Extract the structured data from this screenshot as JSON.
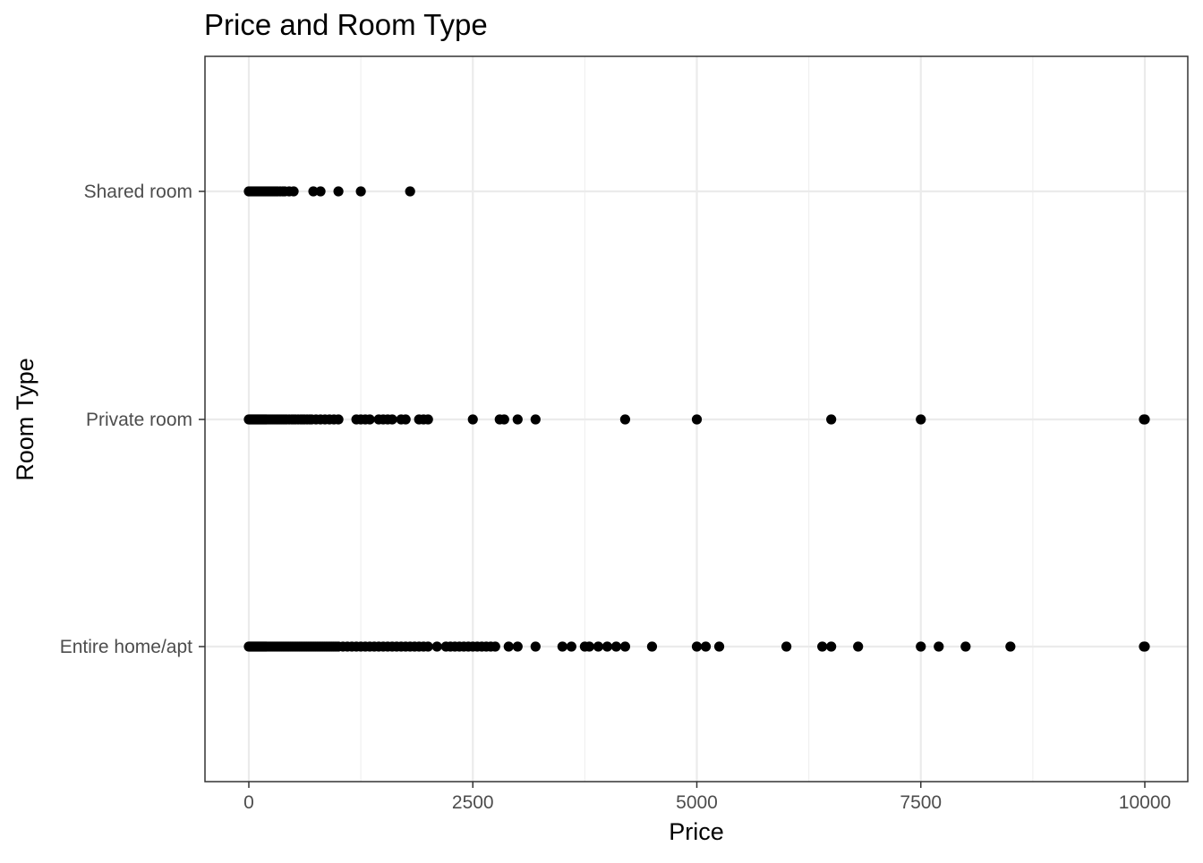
{
  "chart_data": {
    "type": "scatter",
    "title": "Price and Room Type",
    "xlabel": "Price",
    "ylabel": "Room Type",
    "xlim": [
      -500,
      10500
    ],
    "x_ticks": [
      0,
      2500,
      5000,
      7500,
      10000
    ],
    "x_tick_labels": [
      "0",
      "2500",
      "5000",
      "7500",
      "10000"
    ],
    "categories": [
      "Entire home/apt",
      "Private room",
      "Shared room"
    ],
    "grid": true,
    "theme": "bw",
    "point_color": "#000000",
    "series": [
      {
        "category": "Shared room",
        "x": [
          0,
          20,
          40,
          60,
          80,
          100,
          120,
          140,
          160,
          180,
          200,
          220,
          240,
          260,
          280,
          300,
          320,
          350,
          380,
          400,
          450,
          500,
          720,
          800,
          1000,
          1250,
          1800
        ]
      },
      {
        "category": "Private room",
        "x": [
          0,
          10,
          20,
          30,
          40,
          50,
          60,
          70,
          80,
          90,
          100,
          110,
          120,
          130,
          140,
          150,
          160,
          170,
          180,
          190,
          200,
          220,
          240,
          260,
          280,
          300,
          320,
          340,
          360,
          380,
          400,
          420,
          450,
          480,
          500,
          520,
          550,
          580,
          600,
          620,
          650,
          680,
          700,
          750,
          800,
          850,
          900,
          950,
          1000,
          1200,
          1250,
          1300,
          1350,
          1450,
          1500,
          1550,
          1600,
          1700,
          1750,
          1900,
          1950,
          2000,
          2500,
          2800,
          2850,
          3000,
          3200,
          4200,
          5000,
          6500,
          7500,
          9990,
          10000
        ]
      },
      {
        "category": "Entire home/apt",
        "x": [
          0,
          10,
          20,
          30,
          40,
          50,
          60,
          70,
          80,
          90,
          100,
          110,
          120,
          130,
          140,
          150,
          160,
          170,
          180,
          190,
          200,
          220,
          240,
          260,
          280,
          300,
          320,
          340,
          360,
          380,
          400,
          420,
          440,
          460,
          480,
          500,
          520,
          540,
          560,
          580,
          600,
          620,
          640,
          660,
          680,
          700,
          720,
          740,
          760,
          780,
          800,
          820,
          840,
          860,
          880,
          900,
          920,
          940,
          960,
          980,
          1000,
          1050,
          1100,
          1150,
          1200,
          1250,
          1300,
          1350,
          1400,
          1450,
          1500,
          1550,
          1600,
          1650,
          1700,
          1750,
          1800,
          1850,
          1900,
          1950,
          2000,
          2100,
          2200,
          2250,
          2300,
          2350,
          2400,
          2450,
          2500,
          2550,
          2600,
          2650,
          2700,
          2750,
          2900,
          3000,
          3200,
          3500,
          3600,
          3750,
          3800,
          3900,
          4000,
          4100,
          4200,
          4500,
          5000,
          5100,
          5250,
          6000,
          6400,
          6500,
          6800,
          7500,
          7700,
          8000,
          8500,
          9990,
          10000
        ]
      }
    ]
  }
}
